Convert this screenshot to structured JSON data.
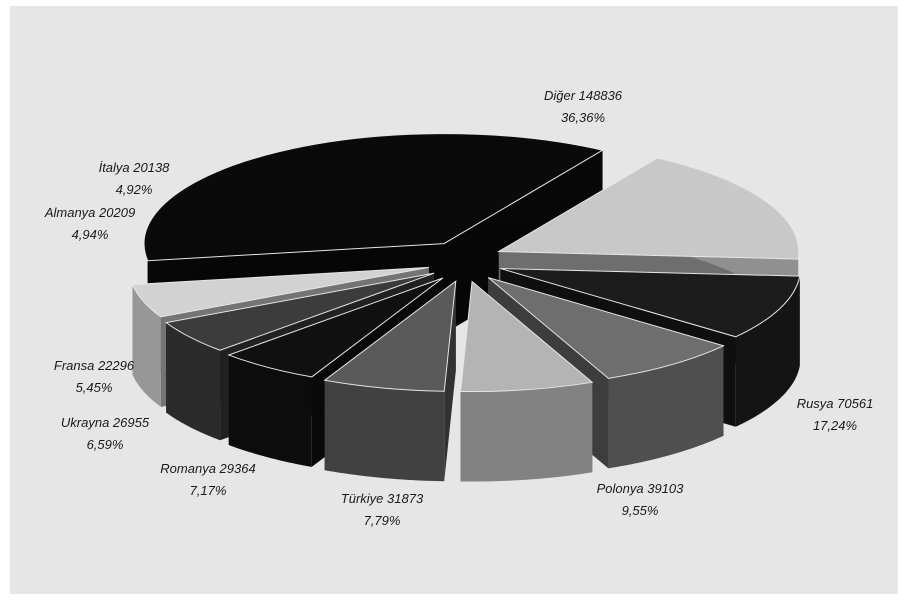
{
  "chart_data": {
    "type": "pie",
    "style": "3d-exploded",
    "title": "",
    "slices": [
      {
        "label": "Diğer",
        "value": 148836,
        "percent": "36,36%",
        "value_text": "148836",
        "color": "#0a0a0a"
      },
      {
        "label": "Rusya",
        "value": 70561,
        "percent": "17,24%",
        "value_text": "70561",
        "color": "#c8c8c8"
      },
      {
        "label": "Polonya",
        "value": 39103,
        "percent": "9,55%",
        "value_text": "39103",
        "color": "#1c1c1c"
      },
      {
        "label": "Türkiye",
        "value": 31873,
        "percent": "7,79%",
        "value_text": "31873",
        "color": "#6e6e6e"
      },
      {
        "label": "Romanya",
        "value": 29364,
        "percent": "7,17%",
        "value_text": "29364",
        "color": "#b4b4b4"
      },
      {
        "label": "Ukrayna",
        "value": 26955,
        "percent": "6,59%",
        "value_text": "26955",
        "color": "#5a5a5a"
      },
      {
        "label": "Fransa",
        "value": 22296,
        "percent": "5,45%",
        "value_text": "22296",
        "color": "#101010"
      },
      {
        "label": "Almanya",
        "value": 20209,
        "percent": "4,94%",
        "value_text": "20209",
        "color": "#3c3c3c"
      },
      {
        "label": "İtalya",
        "value": 20138,
        "percent": "4,92%",
        "value_text": "20138",
        "color": "#d2d2d2"
      }
    ]
  }
}
